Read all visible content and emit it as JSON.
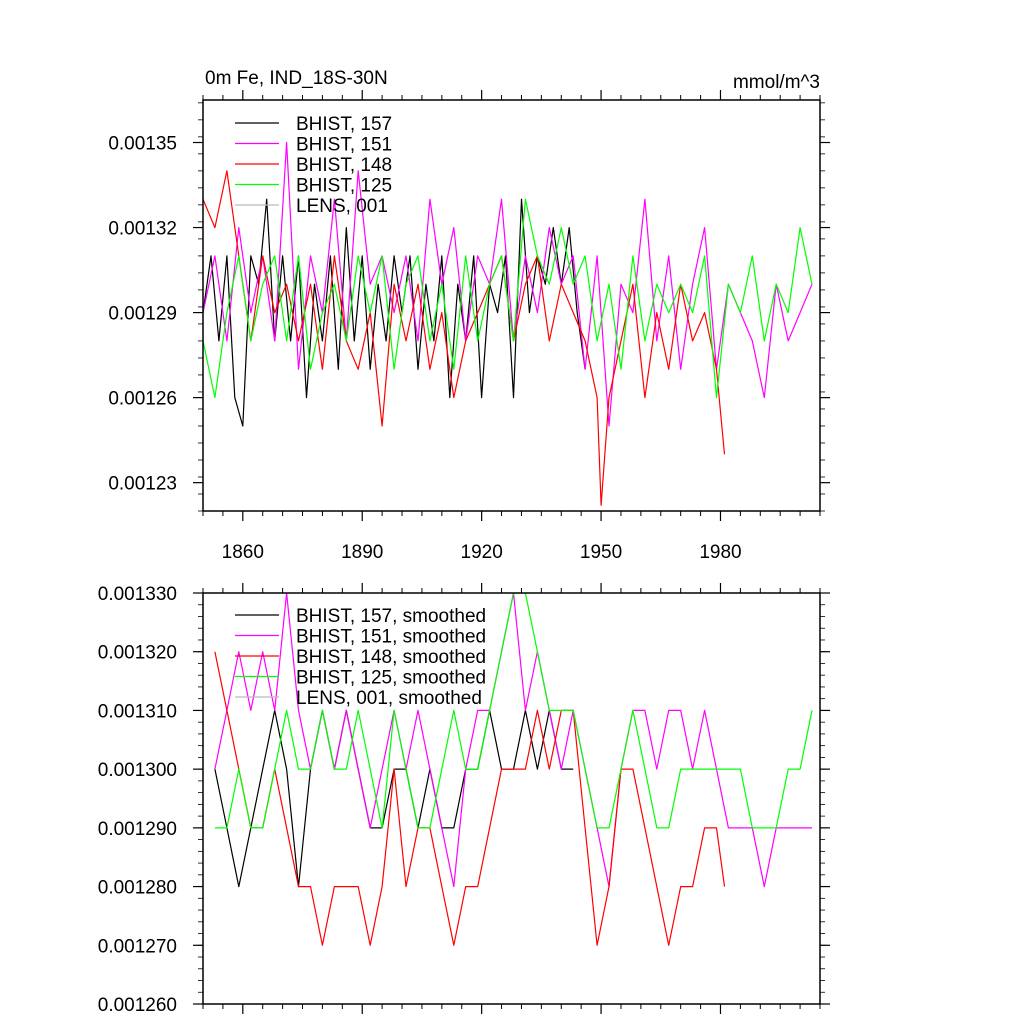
{
  "chart_data": [
    {
      "type": "line",
      "title": "0m Fe, IND_18S-30N",
      "units": "mmol/m^3",
      "xlim": [
        1850,
        2005
      ],
      "ylim": [
        0.00122,
        0.001365
      ],
      "xticks": [
        1860,
        1890,
        1920,
        1950,
        1980
      ],
      "xtick_labels": [
        "1860",
        "1890",
        "1920",
        "1950",
        "1980"
      ],
      "yticks": [
        0.00123,
        0.00126,
        0.00129,
        0.00132,
        0.00135
      ],
      "ytick_labels": [
        "0.00123",
        "0.00126",
        "0.00129",
        "0.00132",
        "0.00135"
      ],
      "legend_position": "top-left",
      "series": [
        {
          "name": "BHIST, 157",
          "color": "#000000",
          "x": [
            1850,
            1852,
            1854,
            1856,
            1858,
            1860,
            1862,
            1864,
            1866,
            1868,
            1870,
            1872,
            1874,
            1876,
            1878,
            1880,
            1882,
            1884,
            1886,
            1888,
            1890,
            1892,
            1894,
            1896,
            1898,
            1900,
            1902,
            1904,
            1906,
            1908,
            1910,
            1912,
            1914,
            1916,
            1918,
            1920,
            1922,
            1924,
            1926,
            1928,
            1930,
            1932,
            1934,
            1936,
            1938,
            1940,
            1942,
            1944,
            1946
          ],
          "values": [
            0.00129,
            0.00131,
            0.00128,
            0.00131,
            0.00126,
            0.00125,
            0.00131,
            0.0013,
            0.00133,
            0.00128,
            0.00131,
            0.00128,
            0.00131,
            0.00126,
            0.0013,
            0.00128,
            0.00131,
            0.00127,
            0.00132,
            0.00128,
            0.00131,
            0.00127,
            0.0013,
            0.00128,
            0.00131,
            0.00129,
            0.00131,
            0.00127,
            0.0013,
            0.00128,
            0.00131,
            0.00126,
            0.0013,
            0.00128,
            0.00131,
            0.00126,
            0.0013,
            0.00129,
            0.00131,
            0.00126,
            0.00133,
            0.00129,
            0.00131,
            0.0013,
            0.00132,
            0.0013,
            0.00132,
            0.00129,
            0.00127
          ]
        },
        {
          "name": "BHIST, 151",
          "color": "#ff00ff",
          "x": [
            1850,
            1853,
            1856,
            1859,
            1862,
            1865,
            1868,
            1871,
            1874,
            1877,
            1880,
            1883,
            1886,
            1889,
            1892,
            1895,
            1898,
            1901,
            1904,
            1907,
            1910,
            1913,
            1916,
            1919,
            1922,
            1925,
            1928,
            1931,
            1934,
            1937,
            1940,
            1943,
            1946,
            1949,
            1952,
            1955,
            1958,
            1961,
            1964,
            1967,
            1970,
            1973,
            1976,
            1979,
            1982,
            1985,
            1988,
            1991,
            1994,
            1997,
            2000,
            2003
          ],
          "values": [
            0.00129,
            0.00131,
            0.00128,
            0.00132,
            0.00129,
            0.00131,
            0.00128,
            0.00135,
            0.00127,
            0.00131,
            0.00129,
            0.00133,
            0.00128,
            0.00134,
            0.0013,
            0.00131,
            0.00129,
            0.00131,
            0.00128,
            0.00133,
            0.0013,
            0.00132,
            0.00128,
            0.00131,
            0.0013,
            0.00133,
            0.00128,
            0.00131,
            0.00129,
            0.00132,
            0.0013,
            0.00131,
            0.00127,
            0.00131,
            0.00125,
            0.0013,
            0.00129,
            0.00133,
            0.00128,
            0.00131,
            0.00127,
            0.0013,
            0.00132,
            0.00127,
            0.0013,
            0.00129,
            0.00128,
            0.00126,
            0.0013,
            0.00128,
            0.00129,
            0.0013
          ]
        },
        {
          "name": "BHIST, 148",
          "color": "#ff0000",
          "x": [
            1850,
            1853,
            1856,
            1859,
            1862,
            1865,
            1868,
            1871,
            1874,
            1877,
            1880,
            1883,
            1886,
            1889,
            1892,
            1895,
            1898,
            1901,
            1904,
            1907,
            1910,
            1913,
            1916,
            1919,
            1922,
            1925,
            1928,
            1931,
            1934,
            1937,
            1940,
            1943,
            1946,
            1949,
            1950,
            1952,
            1955,
            1958,
            1961,
            1964,
            1967,
            1970,
            1973,
            1976,
            1979,
            1981
          ],
          "values": [
            0.00133,
            0.00132,
            0.00134,
            0.00131,
            0.00128,
            0.00131,
            0.00129,
            0.0013,
            0.00128,
            0.0013,
            0.00127,
            0.00131,
            0.00128,
            0.00127,
            0.00129,
            0.00125,
            0.0013,
            0.00128,
            0.0013,
            0.00127,
            0.00129,
            0.00126,
            0.00128,
            0.00129,
            0.0013,
            0.00131,
            0.00128,
            0.0013,
            0.00131,
            0.00128,
            0.0013,
            0.00129,
            0.00128,
            0.00126,
            0.001222,
            0.00126,
            0.00128,
            0.0013,
            0.00126,
            0.00129,
            0.00127,
            0.0013,
            0.00128,
            0.00129,
            0.00127,
            0.00124
          ]
        },
        {
          "name": "BHIST, 125",
          "color": "#00ff00",
          "x": [
            1850,
            1853,
            1856,
            1859,
            1862,
            1865,
            1868,
            1871,
            1874,
            1877,
            1880,
            1883,
            1886,
            1889,
            1892,
            1895,
            1898,
            1901,
            1904,
            1907,
            1910,
            1913,
            1916,
            1919,
            1922,
            1925,
            1928,
            1931,
            1934,
            1937,
            1940,
            1943,
            1946,
            1949,
            1952,
            1955,
            1958,
            1961,
            1964,
            1967,
            1970,
            1973,
            1976,
            1979,
            1982,
            1985,
            1988,
            1991,
            1994,
            1997,
            2000,
            2003
          ],
          "values": [
            0.00128,
            0.00126,
            0.00129,
            0.00131,
            0.00128,
            0.0013,
            0.00131,
            0.00128,
            0.00131,
            0.00127,
            0.00129,
            0.0013,
            0.00128,
            0.00131,
            0.00129,
            0.00131,
            0.00127,
            0.0013,
            0.00131,
            0.00128,
            0.0013,
            0.00127,
            0.00131,
            0.00128,
            0.0013,
            0.00131,
            0.00128,
            0.00133,
            0.00131,
            0.0013,
            0.00132,
            0.0013,
            0.00131,
            0.00128,
            0.0013,
            0.00127,
            0.00131,
            0.00128,
            0.0013,
            0.00129,
            0.0013,
            0.00129,
            0.00131,
            0.00126,
            0.0013,
            0.00129,
            0.00131,
            0.00128,
            0.0013,
            0.00129,
            0.00132,
            0.0013
          ]
        },
        {
          "name": "LENS, 001",
          "color": "#bbbbbb",
          "x": [],
          "values": []
        }
      ]
    },
    {
      "type": "line",
      "title": "",
      "xlim": [
        1850,
        2005
      ],
      "ylim": [
        0.00126,
        0.00133
      ],
      "xticks": [
        1860,
        1890,
        1920,
        1950,
        1980
      ],
      "xtick_labels": [],
      "yticks": [
        0.00126,
        0.00127,
        0.00128,
        0.00129,
        0.0013,
        0.00131,
        0.00132,
        0.00133
      ],
      "ytick_labels": [
        "0.001260",
        "0.001270",
        "0.001280",
        "0.001290",
        "0.001300",
        "0.001310",
        "0.001320",
        "0.001330"
      ],
      "legend_position": "top-left",
      "series": [
        {
          "name": "BHIST, 157, smoothed",
          "color": "#000000",
          "x": [
            1853,
            1856,
            1859,
            1862,
            1865,
            1868,
            1871,
            1874,
            1877,
            1880,
            1883,
            1886,
            1889,
            1892,
            1895,
            1898,
            1901,
            1904,
            1907,
            1910,
            1913,
            1916,
            1919,
            1922,
            1925,
            1928,
            1931,
            1934,
            1937,
            1940,
            1943
          ],
          "values": [
            0.0013,
            0.00129,
            0.00128,
            0.00129,
            0.0013,
            0.00131,
            0.0013,
            0.00128,
            0.0013,
            0.00131,
            0.0013,
            0.00131,
            0.0013,
            0.00129,
            0.00129,
            0.0013,
            0.0013,
            0.00129,
            0.0013,
            0.00129,
            0.00129,
            0.0013,
            0.0013,
            0.00131,
            0.0013,
            0.0013,
            0.00131,
            0.0013,
            0.00131,
            0.0013,
            0.0013
          ]
        },
        {
          "name": "BHIST, 151, smoothed",
          "color": "#ff00ff",
          "x": [
            1853,
            1856,
            1859,
            1862,
            1865,
            1868,
            1871,
            1874,
            1877,
            1880,
            1883,
            1886,
            1889,
            1892,
            1895,
            1898,
            1901,
            1904,
            1907,
            1910,
            1913,
            1916,
            1919,
            1922,
            1925,
            1928,
            1931,
            1934,
            1937,
            1940,
            1943,
            1946,
            1949,
            1952,
            1955,
            1958,
            1961,
            1964,
            1967,
            1970,
            1973,
            1976,
            1979,
            1982,
            1985,
            1988,
            1991,
            1994,
            1997,
            2000,
            2003
          ],
          "values": [
            0.0013,
            0.00131,
            0.00132,
            0.00131,
            0.00132,
            0.00131,
            0.00133,
            0.00131,
            0.0013,
            0.00131,
            0.0013,
            0.00131,
            0.0013,
            0.00129,
            0.0013,
            0.00131,
            0.0013,
            0.00131,
            0.0013,
            0.00129,
            0.00128,
            0.0013,
            0.00131,
            0.00131,
            0.00132,
            0.00133,
            0.00131,
            0.00132,
            0.00131,
            0.0013,
            0.00131,
            0.0013,
            0.00129,
            0.00128,
            0.0013,
            0.00131,
            0.00131,
            0.0013,
            0.00131,
            0.00131,
            0.0013,
            0.00131,
            0.0013,
            0.00129,
            0.00129,
            0.00129,
            0.00128,
            0.00129,
            0.00129,
            0.00129,
            0.00129
          ]
        },
        {
          "name": "BHIST, 148, smoothed",
          "color": "#ff0000",
          "x": [
            1853,
            1856,
            1859,
            1862,
            1865,
            1868,
            1871,
            1874,
            1877,
            1880,
            1883,
            1886,
            1889,
            1892,
            1895,
            1898,
            1901,
            1904,
            1907,
            1910,
            1913,
            1916,
            1919,
            1922,
            1925,
            1928,
            1931,
            1934,
            1937,
            1940,
            1943,
            1946,
            1949,
            1952,
            1955,
            1958,
            1961,
            1964,
            1967,
            1970,
            1973,
            1976,
            1979,
            1981
          ],
          "values": [
            0.00132,
            0.00131,
            0.0013,
            0.00129,
            0.00129,
            0.0013,
            0.00129,
            0.00128,
            0.00128,
            0.00127,
            0.00128,
            0.00128,
            0.00128,
            0.00127,
            0.00128,
            0.0013,
            0.00128,
            0.00129,
            0.00129,
            0.00128,
            0.00127,
            0.00128,
            0.00128,
            0.00129,
            0.0013,
            0.0013,
            0.0013,
            0.00131,
            0.0013,
            0.00131,
            0.00131,
            0.00129,
            0.00127,
            0.00128,
            0.0013,
            0.0013,
            0.00129,
            0.00128,
            0.00127,
            0.00128,
            0.00128,
            0.00129,
            0.00129,
            0.00128
          ]
        },
        {
          "name": "BHIST, 125, smoothed",
          "color": "#00ff00",
          "x": [
            1853,
            1856,
            1859,
            1862,
            1865,
            1868,
            1871,
            1874,
            1877,
            1880,
            1883,
            1886,
            1889,
            1892,
            1895,
            1898,
            1901,
            1904,
            1907,
            1910,
            1913,
            1916,
            1919,
            1922,
            1925,
            1928,
            1931,
            1934,
            1937,
            1940,
            1943,
            1946,
            1949,
            1952,
            1955,
            1958,
            1961,
            1964,
            1967,
            1970,
            1973,
            1976,
            1979,
            1982,
            1985,
            1988,
            1991,
            1994,
            1997,
            2000,
            2003
          ],
          "values": [
            0.00129,
            0.00129,
            0.0013,
            0.00129,
            0.00129,
            0.0013,
            0.00131,
            0.0013,
            0.0013,
            0.00131,
            0.0013,
            0.0013,
            0.00131,
            0.0013,
            0.00129,
            0.00131,
            0.0013,
            0.00129,
            0.00129,
            0.0013,
            0.00131,
            0.0013,
            0.0013,
            0.00131,
            0.00132,
            0.00133,
            0.00133,
            0.00132,
            0.00131,
            0.00131,
            0.00131,
            0.0013,
            0.00129,
            0.00129,
            0.0013,
            0.00131,
            0.0013,
            0.00129,
            0.00129,
            0.0013,
            0.0013,
            0.0013,
            0.0013,
            0.0013,
            0.0013,
            0.00129,
            0.00129,
            0.00129,
            0.0013,
            0.0013,
            0.00131
          ]
        },
        {
          "name": "LENS, 001, smoothed",
          "color": "#bbbbbb",
          "x": [],
          "values": []
        }
      ]
    }
  ]
}
